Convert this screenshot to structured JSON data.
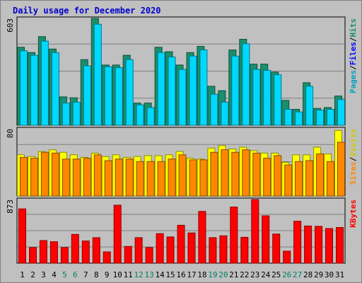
{
  "chart_data": {
    "type": "bar",
    "title": "Daily usage for December 2020",
    "categories": [
      "1",
      "2",
      "3",
      "4",
      "5",
      "6",
      "7",
      "8",
      "9",
      "10",
      "11",
      "12",
      "13",
      "14",
      "15",
      "16",
      "17",
      "18",
      "19",
      "20",
      "21",
      "22",
      "23",
      "24",
      "25",
      "26",
      "27",
      "28",
      "29",
      "30",
      "31"
    ],
    "weekend_days": [
      "5",
      "6",
      "12",
      "13",
      "19",
      "20",
      "26",
      "27"
    ],
    "panels": [
      {
        "id": "hits_files_pages",
        "ylabel": [
          "Pages",
          "Files",
          "Hits"
        ],
        "ymax_label": "603",
        "ylim": [
          0,
          603
        ],
        "series": [
          {
            "name": "Hits",
            "color": "#1a8f6e",
            "values": [
              440,
              410,
              500,
              430,
              160,
              155,
              370,
              603,
              340,
              340,
              395,
              125,
              125,
              440,
              415,
              340,
              410,
              445,
              220,
              195,
              425,
              485,
              345,
              345,
              300,
              140,
              90,
              240,
              95,
              100,
              165
            ]
          },
          {
            "name": "Files",
            "color": "#00d8ff",
            "values": [
              420,
              395,
              475,
              410,
              125,
              130,
              335,
              570,
              330,
              325,
              370,
              115,
              100,
              410,
              385,
              315,
              390,
              425,
              175,
              130,
              390,
              460,
              315,
              310,
              285,
              90,
              75,
              220,
              85,
              90,
              145
            ]
          },
          {
            "name": "Pages",
            "color": "#0000ff",
            "values": [
              0,
              0,
              0,
              0,
              0,
              0,
              0,
              0,
              0,
              0,
              0,
              0,
              0,
              0,
              0,
              0,
              0,
              0,
              0,
              0,
              0,
              0,
              0,
              0,
              0,
              0,
              0,
              0,
              0,
              0,
              0
            ]
          }
        ]
      },
      {
        "id": "visits_sites",
        "ylabel": [
          "Sites",
          "Visits"
        ],
        "ymax_label": "80",
        "ylim": [
          0,
          80
        ],
        "series": [
          {
            "name": "Visits",
            "color": "#ffff00",
            "values": [
              49,
              47,
              53,
              55,
              52,
              49,
              46,
              51,
              47,
              49,
              46,
              47,
              48,
              48,
              49,
              53,
              45,
              44,
              57,
              60,
              56,
              58,
              54,
              51,
              51,
              40,
              49,
              49,
              58,
              50,
              78
            ]
          },
          {
            "name": "Sites",
            "color": "#ff8800",
            "values": [
              46,
              45,
              52,
              51,
              44,
              44,
              45,
              49,
              42,
              44,
              44,
              41,
              41,
              41,
              44,
              49,
              43,
              43,
              52,
              55,
              52,
              55,
              51,
              45,
              48,
              37,
              41,
              42,
              50,
              41,
              64
            ]
          }
        ]
      },
      {
        "id": "kbytes",
        "ylabel": [
          "KBytes"
        ],
        "ymax_label": "873",
        "ylim": [
          0,
          873
        ],
        "series": [
          {
            "name": "KBytes",
            "color": "#ff0000",
            "values": [
              745,
              215,
              310,
              295,
              215,
              395,
              305,
              350,
              155,
              795,
              230,
              350,
              215,
              405,
              360,
              520,
              415,
              710,
              350,
              375,
              770,
              355,
              873,
              650,
              400,
              165,
              575,
              510,
              505,
              475,
              490
            ]
          }
        ]
      }
    ]
  }
}
